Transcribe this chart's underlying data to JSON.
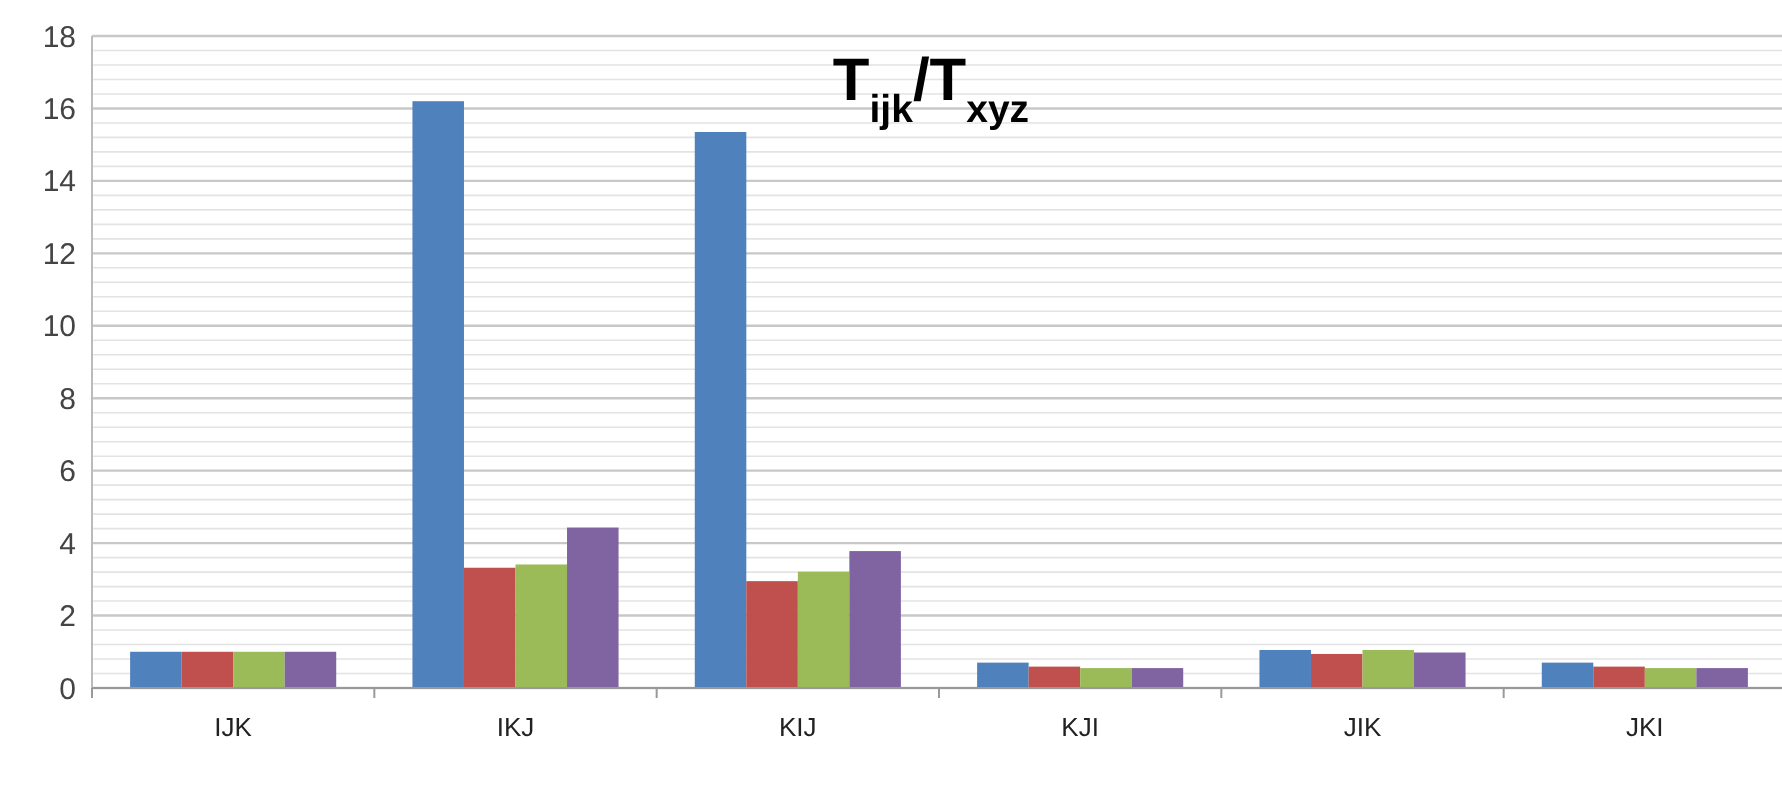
{
  "chart_data": {
    "type": "bar",
    "title": "T$_{ijk}$/T$_{xyz}$",
    "categories": [
      "IJK",
      "IKJ",
      "KIJ",
      "KJI",
      "JIK",
      "JKI"
    ],
    "series": [
      {
        "color": "#4f81bd",
        "values": [
          1.0,
          16.2,
          15.35,
          0.7,
          1.05,
          0.7
        ]
      },
      {
        "color": "#c0504d",
        "values": [
          1.0,
          3.32,
          2.95,
          0.59,
          0.94,
          0.59
        ]
      },
      {
        "color": "#9bbb59",
        "values": [
          1.0,
          3.41,
          3.21,
          0.55,
          1.05,
          0.55
        ]
      },
      {
        "color": "#8064a2",
        "values": [
          1.0,
          4.43,
          3.78,
          0.55,
          0.98,
          0.55
        ]
      }
    ],
    "ylim": [
      0,
      18
    ],
    "yticks": [
      0,
      {
        "value": 0.4,
        "label": null
      },
      {
        "value": 0.8,
        "label": null
      },
      {
        "value": 1.2,
        "label": null
      },
      {
        "value": 1.6,
        "label": null
      },
      2,
      {
        "value": 2.4,
        "label": null
      },
      {
        "value": 2.8,
        "label": null
      },
      {
        "value": 3.2,
        "label": null
      },
      {
        "value": 3.6,
        "label": null
      },
      4,
      {
        "value": 4.4,
        "label": null
      },
      {
        "value": 4.8,
        "label": null
      },
      {
        "value": 5.2,
        "label": null
      },
      {
        "value": 5.6,
        "label": null
      },
      6,
      {
        "value": 6.4,
        "label": null
      },
      {
        "value": 6.8,
        "label": null
      },
      {
        "value": 7.2,
        "label": null
      },
      {
        "value": 7.6,
        "label": null
      },
      8,
      {
        "value": 8.4,
        "label": null
      },
      {
        "value": 8.8,
        "label": null
      },
      {
        "value": 9.2,
        "label": null
      },
      {
        "value": 9.6,
        "label": null
      },
      10,
      {
        "value": 10.4,
        "label": null
      },
      {
        "value": 10.8,
        "label": null
      },
      {
        "value": 11.2,
        "label": null
      },
      {
        "value": 11.6,
        "label": null
      },
      12,
      {
        "value": 12.4,
        "label": null
      },
      {
        "value": 12.8,
        "label": null
      },
      {
        "value": 13.2,
        "label": null
      },
      {
        "value": 13.6,
        "label": null
      },
      14,
      {
        "value": 14.4,
        "label": null
      },
      {
        "value": 14.8,
        "label": null
      },
      {
        "value": 15.2,
        "label": null
      },
      {
        "value": 15.6,
        "label": null
      },
      16,
      {
        "value": 16.4,
        "label": null
      },
      {
        "value": 16.8,
        "label": null
      },
      {
        "value": 17.2,
        "label": null
      },
      {
        "value": 17.6,
        "label": null
      },
      18
    ],
    "grid": "y"
  }
}
